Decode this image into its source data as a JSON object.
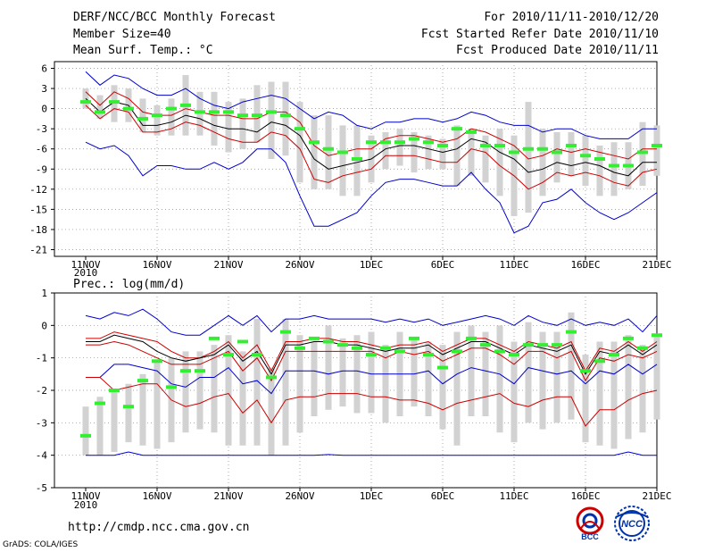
{
  "header": {
    "title": "DERF/NCC/BCC Monthly Forecast",
    "member_size": "Member Size=40",
    "variable": "Mean Surf. Temp.: °C",
    "period": "For 2010/11/11-2010/12/20",
    "started": "Fcst Started Refer Date 2010/11/10",
    "produced": "Fcst Produced Date 2010/11/11"
  },
  "footer": {
    "url": "http://cmdp.ncc.cma.gov.cn",
    "grads": "GrADS: COLA/IGES",
    "logo_bcc_text": "BCC",
    "logo_ncc_text": "NCC"
  },
  "colors": {
    "max_min": "#0000cc",
    "quartile": "#cc0000",
    "mean": "#000000",
    "median": "#33ee33",
    "box": "#d2d2d2",
    "grid": "#888888"
  },
  "chart_data": [
    {
      "type": "box",
      "name": "temperature",
      "ylabel": "Mean Surf. Temp.: °C",
      "ylim": [
        -22,
        7
      ],
      "yticks": [
        6,
        3,
        0,
        -3,
        -6,
        -9,
        -12,
        -15,
        -18,
        -21
      ],
      "xlim": [
        0,
        40
      ],
      "x_tick_positions": [
        0,
        5,
        10,
        15,
        20,
        25,
        30,
        35,
        40
      ],
      "x_tick_labels": [
        "11NOV",
        "16NOV",
        "21NOV",
        "26NOV",
        "1DEC",
        "6DEC",
        "11DEC",
        "16DEC",
        "21DEC"
      ],
      "x_year_label": "2010",
      "series": {
        "max": [
          5.5,
          3.5,
          5,
          4.5,
          3,
          2,
          2,
          3,
          1.5,
          0.5,
          0,
          1,
          1.5,
          2,
          1.5,
          0,
          -1.5,
          -0.5,
          -1,
          -2.5,
          -3,
          -2,
          -2,
          -1.5,
          -1.5,
          -2,
          -1.5,
          -0.5,
          -1,
          -2,
          -2.5,
          -2.5,
          -3.5,
          -3,
          -3,
          -4,
          -4.5,
          -4.5,
          -4.5,
          -3,
          -3
        ],
        "q3": [
          2.5,
          0.5,
          2.5,
          1.5,
          -0.5,
          -1,
          -1,
          0,
          -0.5,
          -1,
          -1,
          -1.5,
          -1.5,
          -0.5,
          -0.5,
          -2,
          -5.5,
          -7,
          -6.5,
          -6,
          -6,
          -4.5,
          -4,
          -4,
          -4.5,
          -5,
          -4.5,
          -3,
          -3.5,
          -4.5,
          -5.5,
          -7.5,
          -7,
          -6,
          -6.5,
          -6,
          -6.5,
          -7,
          -7.5,
          -6,
          -6
        ],
        "mean": [
          1.5,
          -0.5,
          1,
          0.5,
          -2.5,
          -2.5,
          -2,
          -1,
          -1.5,
          -2.5,
          -3,
          -3,
          -3.5,
          -2,
          -2.5,
          -4,
          -7.5,
          -9,
          -8.5,
          -8,
          -7.5,
          -6,
          -5.5,
          -5.5,
          -6,
          -6.5,
          -6,
          -4.5,
          -5,
          -6.5,
          -7.5,
          -9.5,
          -9,
          -8,
          -8.5,
          -8,
          -8.5,
          -9.5,
          -10,
          -8,
          -8
        ],
        "q1": [
          0.5,
          -1.5,
          0,
          -0.5,
          -3.5,
          -3.5,
          -3,
          -2,
          -2.5,
          -3.5,
          -4.5,
          -5,
          -5,
          -3.5,
          -4,
          -6,
          -10.5,
          -11,
          -10,
          -9.5,
          -9,
          -7,
          -7,
          -7,
          -7.5,
          -8,
          -8,
          -6,
          -6.5,
          -8.5,
          -10,
          -12,
          -11,
          -9.5,
          -10,
          -9.5,
          -10,
          -11,
          -11.5,
          -9.5,
          -9
        ],
        "min": [
          -5,
          -6,
          -5.5,
          -7,
          -10,
          -8.5,
          -8.5,
          -9,
          -9,
          -8,
          -9,
          -8,
          -6,
          -6,
          -8,
          -13,
          -17.5,
          -17.5,
          -16.5,
          -15.5,
          -13,
          -11,
          -10.5,
          -10.5,
          -11,
          -11.5,
          -11.5,
          -9.5,
          -12,
          -14,
          -18.5,
          -17.5,
          -14,
          -13.5,
          -12,
          -14,
          -15.5,
          -16.5,
          -15.5,
          -14,
          -12.5
        ],
        "box_top": [
          3,
          2,
          3.5,
          3,
          1.5,
          0.5,
          1.5,
          5,
          2.5,
          2.5,
          1,
          1.5,
          3.5,
          4,
          4,
          1,
          -1,
          -1,
          -2.5,
          -2.5,
          -4,
          -3.5,
          -3,
          -3.5,
          -4,
          -4.5,
          -2.5,
          -3,
          -4,
          -3,
          -4,
          1,
          -3,
          -3.5,
          -3.5,
          -4,
          -5.5,
          -5,
          -5,
          -2,
          -2.5
        ],
        "box_bot": [
          0,
          -1.5,
          -2,
          -2,
          -3.5,
          -4,
          -4,
          -4,
          -4,
          -5.5,
          -6.5,
          -6,
          -5,
          -7.5,
          -7,
          -11,
          -12,
          -12,
          -13,
          -13,
          -11,
          -9,
          -8.5,
          -9.5,
          -9,
          -9,
          -11.5,
          -10,
          -11,
          -13,
          -16,
          -15.5,
          -13,
          -11,
          -10,
          -11.5,
          -13,
          -13,
          -12,
          -11.5,
          -10
        ],
        "median": [
          1,
          -0.5,
          1,
          0,
          -1.5,
          -1,
          0,
          0.5,
          -0.5,
          -0.5,
          -0.5,
          -1,
          -1,
          -0.5,
          -1,
          -3,
          -5,
          -6,
          -6.5,
          -7.5,
          -5,
          -5,
          -5,
          -4.5,
          -5,
          -5.5,
          -3,
          -3.5,
          -5.5,
          -5.5,
          -6.5,
          -6,
          -6,
          -6.5,
          -5.5,
          -7,
          -7.5,
          -8.5,
          -8.5,
          -6.5,
          -5.5
        ]
      }
    },
    {
      "type": "box",
      "name": "precipitation",
      "ylabel": "Prec.: log(mm/d)",
      "ylim": [
        -5,
        1
      ],
      "yticks": [
        1,
        0,
        -1,
        -2,
        -3,
        -4,
        -5
      ],
      "xlim": [
        0,
        40
      ],
      "x_tick_positions": [
        0,
        5,
        10,
        15,
        20,
        25,
        30,
        35,
        40
      ],
      "x_tick_labels": [
        "11NOV",
        "16NOV",
        "21NOV",
        "26NOV",
        "1DEC",
        "6DEC",
        "11DEC",
        "16DEC",
        "21DEC"
      ],
      "x_year_label": "2010",
      "series": {
        "max": [
          0.3,
          0.2,
          0.4,
          0.3,
          0.5,
          0.2,
          -0.2,
          -0.3,
          -0.3,
          0,
          0.3,
          0,
          0.3,
          -0.2,
          0.2,
          0.2,
          0.3,
          0.2,
          0.2,
          0.2,
          0.2,
          0.1,
          0.2,
          0.1,
          0.2,
          0,
          0.1,
          0.2,
          0.3,
          0.2,
          0,
          0.3,
          0.1,
          0,
          0.2,
          0,
          0.1,
          0,
          0.2,
          -0.2,
          0.3
        ],
        "q3": [
          -0.4,
          -0.4,
          -0.2,
          -0.3,
          -0.4,
          -0.5,
          -0.8,
          -1,
          -1,
          -0.8,
          -0.5,
          -1,
          -0.6,
          -1.4,
          -0.5,
          -0.5,
          -0.4,
          -0.4,
          -0.5,
          -0.5,
          -0.6,
          -0.7,
          -0.6,
          -0.6,
          -0.5,
          -0.8,
          -0.6,
          -0.4,
          -0.4,
          -0.6,
          -0.8,
          -0.5,
          -0.6,
          -0.7,
          -0.5,
          -1.4,
          -0.7,
          -0.8,
          -0.5,
          -0.8,
          -0.5
        ],
        "mean": [
          -0.5,
          -0.5,
          -0.3,
          -0.4,
          -0.5,
          -0.8,
          -1,
          -1.1,
          -1,
          -0.9,
          -0.6,
          -1.1,
          -0.8,
          -1.5,
          -0.6,
          -0.6,
          -0.5,
          -0.5,
          -0.6,
          -0.6,
          -0.7,
          -0.8,
          -0.7,
          -0.7,
          -0.6,
          -0.9,
          -0.7,
          -0.5,
          -0.5,
          -0.7,
          -0.9,
          -0.6,
          -0.7,
          -0.8,
          -0.6,
          -1.5,
          -0.8,
          -0.9,
          -0.6,
          -0.9,
          -0.6
        ],
        "q1": [
          -0.6,
          -0.6,
          -0.5,
          -0.6,
          -0.8,
          -1,
          -1.2,
          -1.2,
          -1.2,
          -1,
          -0.8,
          -1.4,
          -1,
          -1.7,
          -0.8,
          -0.8,
          -0.8,
          -0.8,
          -0.8,
          -0.8,
          -0.8,
          -1,
          -0.8,
          -0.9,
          -0.8,
          -1.1,
          -0.9,
          -0.7,
          -0.7,
          -0.9,
          -1.2,
          -0.8,
          -0.8,
          -1,
          -0.8,
          -1.7,
          -1,
          -1.1,
          -0.9,
          -1,
          -0.8
        ],
        "min": [
          -1.6,
          -1.6,
          -1.2,
          -1.2,
          -1.3,
          -1.4,
          -1.8,
          -1.9,
          -1.6,
          -1.6,
          -1.3,
          -1.8,
          -1.7,
          -2.1,
          -1.4,
          -1.4,
          -1.4,
          -1.5,
          -1.4,
          -1.4,
          -1.5,
          -1.5,
          -1.5,
          -1.5,
          -1.4,
          -1.8,
          -1.5,
          -1.3,
          -1.4,
          -1.5,
          -1.8,
          -1.3,
          -1.4,
          -1.5,
          -1.4,
          -1.8,
          -1.4,
          -1.5,
          -1.2,
          -1.5,
          -1.2
        ],
        "box_top": [
          -2.5,
          -2.2,
          -2,
          -1.8,
          -1.5,
          -1.1,
          -1,
          -0.8,
          -0.8,
          -0.6,
          -0.3,
          -0.8,
          0.2,
          -1.3,
          0.2,
          -0.3,
          -0.5,
          0,
          -0.4,
          -0.3,
          -0.2,
          -0.6,
          -0.2,
          -0.4,
          -0.5,
          -0.6,
          -0.2,
          0,
          -0.2,
          0,
          -0.5,
          0.1,
          -0.2,
          -0.2,
          0.4,
          -0.9,
          -0.5,
          -0.5,
          -0.3,
          -0.6,
          -0.3
        ],
        "box_bot": [
          -4,
          -4,
          -3.9,
          -3.6,
          -3.7,
          -3.8,
          -3.6,
          -3.3,
          -3.2,
          -3.3,
          -3.7,
          -3.7,
          -3.7,
          -4,
          -3.7,
          -3.3,
          -2.8,
          -2.6,
          -2.5,
          -2.7,
          -2.7,
          -3,
          -2.8,
          -2.5,
          -2.8,
          -3.2,
          -3.7,
          -2.8,
          -2.8,
          -3.3,
          -3.6,
          -3,
          -3.2,
          -3,
          -2.9,
          -3.6,
          -3.7,
          -3.8,
          -3.5,
          -3.3,
          -2.9
        ],
        "median": [
          -3.4,
          -2.4,
          -2,
          -2.5,
          -1.7,
          -1.1,
          -1.9,
          -1.4,
          -1.4,
          -0.4,
          -0.9,
          -0.5,
          -0.9,
          -1.6,
          -0.2,
          -0.7,
          -0.4,
          -0.5,
          -0.6,
          -0.7,
          -0.9,
          -0.7,
          -0.8,
          -0.4,
          -0.9,
          -1.3,
          -0.8,
          -0.4,
          -0.6,
          -0.8,
          -0.9,
          -0.6,
          -0.6,
          -0.6,
          -0.2,
          -1.4,
          -1.1,
          -0.9,
          -0.4,
          -0.7,
          -0.3
        ]
      },
      "min_line": [
        -4,
        -4,
        -4,
        -3.9,
        -4,
        -4,
        -4,
        -4,
        -4,
        -4,
        -4,
        -4,
        -4,
        -4,
        -4,
        -4,
        -4,
        -3.98,
        -4,
        -4,
        -4,
        -4,
        -4,
        -4,
        -4,
        -4,
        -4,
        -4,
        -4,
        -4,
        -4,
        -4,
        -4,
        -4,
        -4,
        -4,
        -4,
        -4,
        -3.9,
        -4,
        -4
      ],
      "lower_red": [
        -1.6,
        -1.6,
        -2,
        -1.9,
        -1.8,
        -1.8,
        -2.3,
        -2.5,
        -2.4,
        -2.2,
        -2.1,
        -2.7,
        -2.3,
        -3,
        -2.3,
        -2.2,
        -2.2,
        -2.1,
        -2.1,
        -2.1,
        -2.2,
        -2.2,
        -2.3,
        -2.3,
        -2.4,
        -2.6,
        -2.4,
        -2.3,
        -2.2,
        -2.1,
        -2.4,
        -2.5,
        -2.3,
        -2.2,
        -2.2,
        -3.1,
        -2.6,
        -2.6,
        -2.3,
        -2.1,
        -2
      ]
    }
  ]
}
